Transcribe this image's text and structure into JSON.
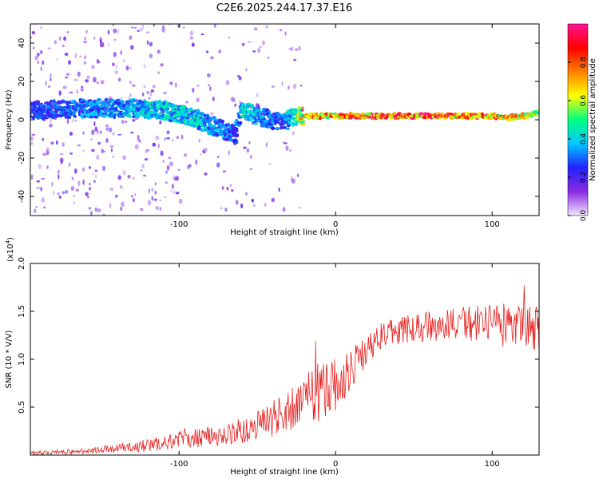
{
  "title": "C2E6.2025.244.17.37.E16",
  "chart_data": [
    {
      "type": "heatmap",
      "title": "C2E6.2025.244.17.37.E16",
      "xlabel": "Height of straight line (km)",
      "ylabel": "Frequency (Hz)",
      "xlim": [
        -195,
        130
      ],
      "ylim": [
        -50,
        50
      ],
      "xticks": [
        -100,
        0,
        100
      ],
      "xtick_labels": [
        "-100",
        "0",
        "100"
      ],
      "yticks": [
        -40,
        -20,
        0,
        20,
        40
      ],
      "ytick_labels": [
        "-40",
        "-20",
        "0",
        "20",
        "40"
      ],
      "colorbar": {
        "label": "Normalized spectral amplitude",
        "range": [
          0,
          1
        ],
        "ticks": [
          0,
          0.2,
          0.4,
          0.6,
          0.8
        ],
        "tick_labels": [
          "0.0",
          "0.2",
          "0.4",
          "0.6",
          "0.8"
        ],
        "colormap": [
          "#f2e6ff",
          "#8a2be2",
          "#2222ff",
          "#00c8ff",
          "#00ff80",
          "#ffff00",
          "#ff8000",
          "#ff0000",
          "#ff1493"
        ]
      },
      "ridge": {
        "x": [
          -192,
          -160,
          -130,
          -110,
          -100,
          -90,
          -80,
          -70,
          -64,
          -60,
          -50,
          -40,
          -35,
          -30,
          -25,
          -20,
          0,
          20,
          40,
          60,
          80,
          100,
          110,
          120,
          130
        ],
        "frequency": [
          5,
          6,
          6,
          5,
          3,
          1,
          -3,
          -6,
          -8,
          6,
          2,
          0,
          -2,
          0,
          2,
          2,
          2,
          2,
          2,
          2,
          2,
          2,
          1,
          2,
          4
        ],
        "amplitude": [
          0.3,
          0.35,
          0.4,
          0.45,
          0.45,
          0.45,
          0.4,
          0.35,
          0.3,
          0.45,
          0.4,
          0.35,
          0.35,
          0.4,
          0.6,
          0.8,
          0.85,
          0.9,
          0.95,
          0.95,
          0.9,
          0.85,
          0.8,
          0.75,
          0.6
        ]
      }
    },
    {
      "type": "line",
      "xlabel": "Height of straight line (km)",
      "ylabel": "SNR (10 * V/V)",
      "multiplier_label": "(x10",
      "multiplier_exp": "4",
      "xlim": [
        -195,
        130
      ],
      "ylim": [
        0,
        20000
      ],
      "xticks": [
        -100,
        0,
        100
      ],
      "xtick_labels": [
        "-100",
        "0",
        "100"
      ],
      "yticks": [
        5000,
        10000,
        15000,
        20000
      ],
      "ytick_labels": [
        "0.5",
        "1.0",
        "1.5",
        "2.0"
      ],
      "series": [
        {
          "name": "SNR",
          "color": "#e82020",
          "x": [
            -195,
            -160,
            -140,
            -120,
            -100,
            -80,
            -60,
            -50,
            -40,
            -30,
            -20,
            -15,
            -10,
            -5,
            0,
            5,
            10,
            20,
            30,
            40,
            50,
            60,
            70,
            80,
            90,
            100,
            110,
            120,
            130
          ],
          "mean": [
            200,
            400,
            700,
            1000,
            1600,
            2000,
            2500,
            3000,
            3800,
            4500,
            5500,
            6000,
            6500,
            7000,
            7200,
            8000,
            9000,
            11000,
            12500,
            13000,
            13200,
            13500,
            13500,
            13600,
            13800,
            13700,
            13600,
            13400,
            13000
          ],
          "spread": [
            200,
            300,
            500,
            700,
            900,
            1100,
            1400,
            1600,
            2000,
            2400,
            3000,
            3200,
            3200,
            3000,
            2800,
            2400,
            2000,
            1600,
            1400,
            1500,
            1500,
            1600,
            1700,
            1800,
            1900,
            2200,
            2400,
            2400,
            2400
          ]
        }
      ]
    }
  ]
}
